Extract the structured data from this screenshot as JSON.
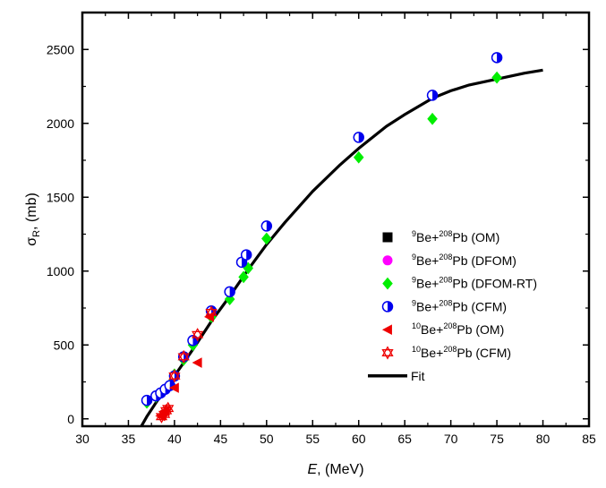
{
  "chart_data": {
    "type": "scatter",
    "title": "",
    "xlabel_main": "E",
    "xlabel_rest": ", (MeV)",
    "ylabel_main": "σ",
    "ylabel_sub": "R",
    "ylabel_rest": ", (mb)",
    "xlim": [
      30,
      85
    ],
    "ylim": [
      -50,
      2750
    ],
    "x_ticks": [
      30,
      35,
      40,
      45,
      50,
      55,
      60,
      65,
      70,
      75,
      80,
      85
    ],
    "y_ticks": [
      0,
      500,
      1000,
      1500,
      2000,
      2500
    ],
    "legend_position": "right",
    "series": [
      {
        "name": "9Be+208Pb (OM)",
        "label_parts": {
          "sup1": "9",
          "a": "Be+",
          "sup2": "208",
          "b": "Pb (OM)"
        },
        "marker": "square",
        "color": "#000000",
        "points": []
      },
      {
        "name": "9Be+208Pb (DFOM)",
        "label_parts": {
          "sup1": "9",
          "a": "Be+",
          "sup2": "208",
          "b": "Pb (DFOM)"
        },
        "marker": "circle",
        "color": "#ff00ff",
        "points": []
      },
      {
        "name": "9Be+208Pb (DFOM-RT)",
        "label_parts": {
          "sup1": "9",
          "a": "Be+",
          "sup2": "208",
          "b": "Pb (DFOM-RT)"
        },
        "marker": "diamond",
        "color": "#00ee00",
        "points": [
          [
            37.0,
            110
          ],
          [
            38.0,
            150
          ],
          [
            38.5,
            175
          ],
          [
            39.0,
            200
          ],
          [
            39.5,
            230
          ],
          [
            40.0,
            300
          ],
          [
            41.0,
            400
          ],
          [
            42.0,
            500
          ],
          [
            44.0,
            690
          ],
          [
            46.0,
            810
          ],
          [
            47.5,
            960
          ],
          [
            48.0,
            1020
          ],
          [
            50.0,
            1220
          ],
          [
            60.0,
            1770
          ],
          [
            68.0,
            2030
          ],
          [
            75.0,
            2310
          ]
        ]
      },
      {
        "name": "9Be+208Pb (CFM)",
        "label_parts": {
          "sup1": "9",
          "a": "Be+",
          "sup2": "208",
          "b": "Pb (CFM)"
        },
        "marker": "half-circle",
        "color": "#0000ee",
        "points": [
          [
            37.0,
            125
          ],
          [
            38.0,
            155
          ],
          [
            38.5,
            175
          ],
          [
            39.0,
            200
          ],
          [
            39.5,
            225
          ],
          [
            40.0,
            290
          ],
          [
            41.0,
            420
          ],
          [
            42.0,
            530
          ],
          [
            44.0,
            730
          ],
          [
            46.0,
            860
          ],
          [
            47.3,
            1060
          ],
          [
            47.8,
            1110
          ],
          [
            50.0,
            1305
          ],
          [
            60.0,
            1905
          ],
          [
            68.0,
            2190
          ],
          [
            75.0,
            2445
          ]
        ]
      },
      {
        "name": "10Be+208Pb (OM)",
        "label_parts": {
          "sup1": "10",
          "a": "Be+",
          "sup2": "208",
          "b": "Pb (OM)"
        },
        "marker": "triangle-left",
        "color": "#ee0000",
        "points": [
          [
            38.5,
            20
          ],
          [
            39.0,
            55
          ],
          [
            40.0,
            210
          ],
          [
            42.5,
            380
          ],
          [
            43.8,
            690
          ]
        ]
      },
      {
        "name": "10Be+208Pb (CFM)",
        "label_parts": {
          "sup1": "10",
          "a": "Be+",
          "sup2": "208",
          "b": "Pb (CFM)"
        },
        "marker": "star-of-david",
        "color": "#ee0000",
        "points": [
          [
            38.6,
            15
          ],
          [
            38.9,
            30
          ],
          [
            39.1,
            55
          ],
          [
            39.3,
            70
          ],
          [
            40.0,
            290
          ],
          [
            41.0,
            420
          ],
          [
            42.5,
            570
          ],
          [
            44.0,
            720
          ]
        ]
      },
      {
        "name": "Fit",
        "label_parts": {
          "sup1": "",
          "a": "Fit",
          "sup2": "",
          "b": ""
        },
        "marker": "line",
        "color": "#000000",
        "points": [
          [
            36.4,
            -50
          ],
          [
            37,
            15
          ],
          [
            38,
            110
          ],
          [
            39,
            200
          ],
          [
            40,
            290
          ],
          [
            42,
            470
          ],
          [
            44,
            660
          ],
          [
            46,
            830
          ],
          [
            48,
            1010
          ],
          [
            50,
            1180
          ],
          [
            52,
            1330
          ],
          [
            55,
            1540
          ],
          [
            58,
            1720
          ],
          [
            60,
            1830
          ],
          [
            63,
            1980
          ],
          [
            65,
            2060
          ],
          [
            68,
            2170
          ],
          [
            70,
            2220
          ],
          [
            72,
            2260
          ],
          [
            75,
            2300
          ],
          [
            78,
            2340
          ],
          [
            80,
            2360
          ]
        ]
      }
    ]
  }
}
